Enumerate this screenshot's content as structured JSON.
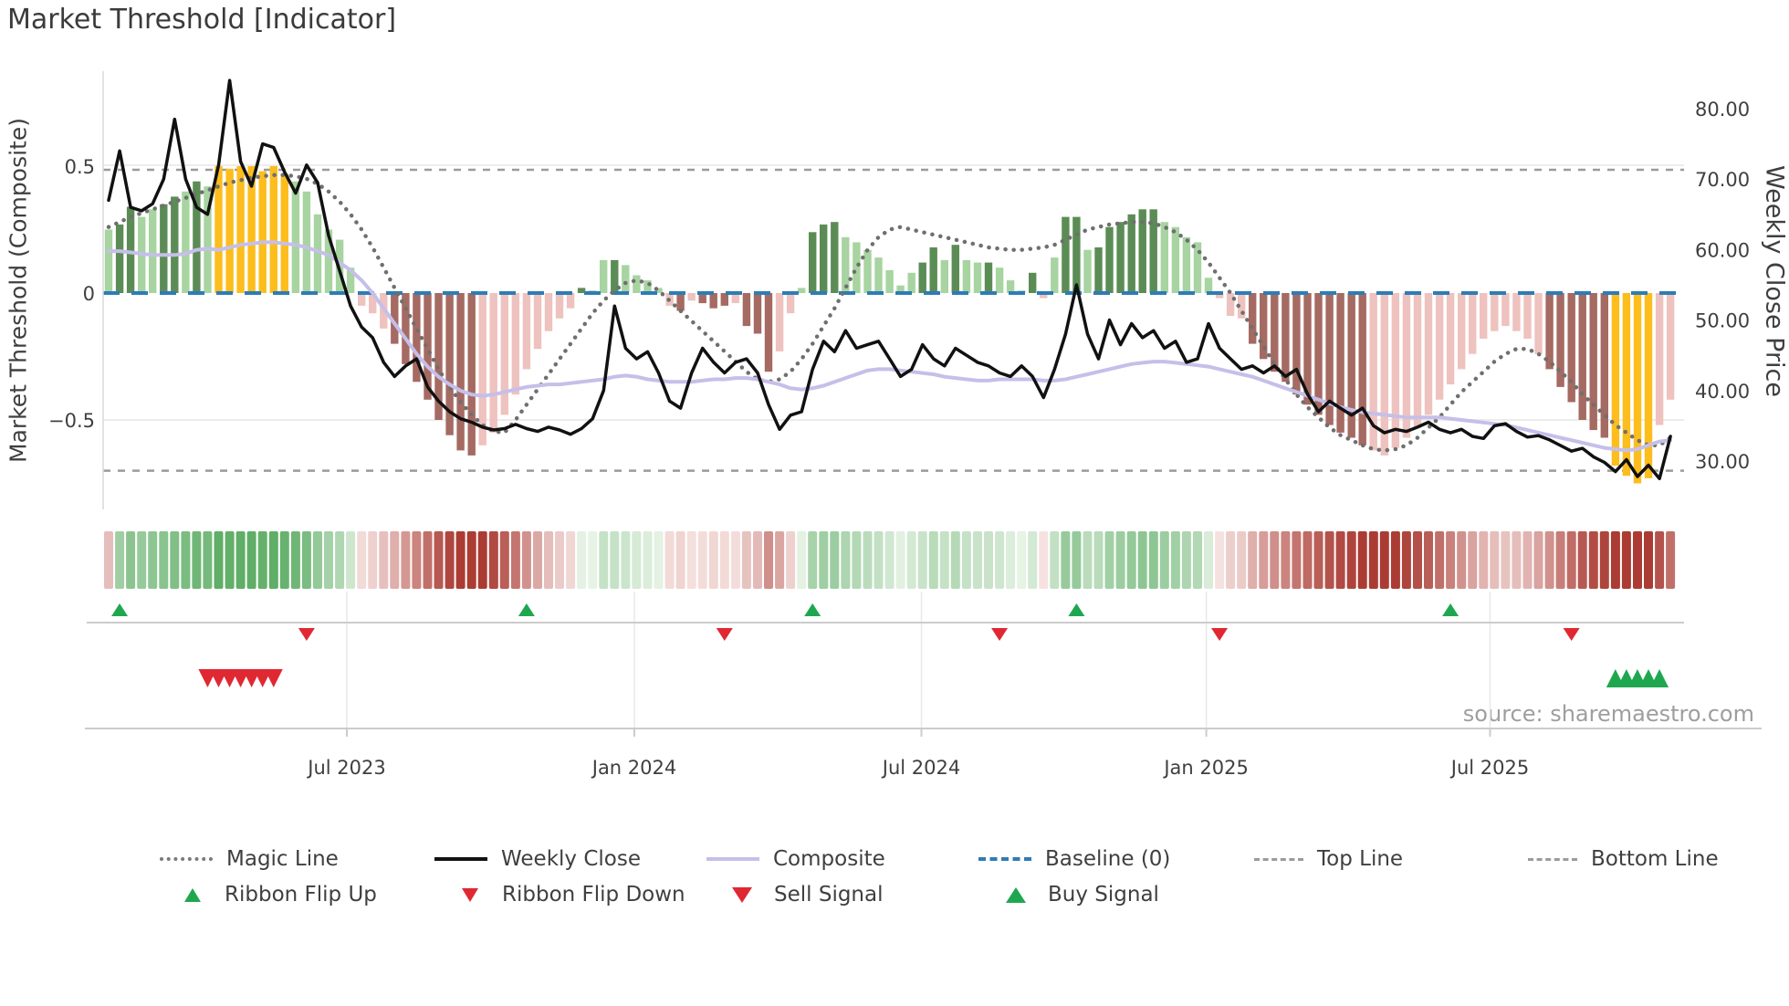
{
  "title": "Market Threshold [Indicator]",
  "source": "source: sharemaestro.com",
  "axes": {
    "left": {
      "label": "Market Threshold (Composite)",
      "ticks": [
        {
          "value": 0.5,
          "label": "0.5"
        },
        {
          "value": 0,
          "label": "0"
        },
        {
          "value": -0.5,
          "label": "−0.5"
        }
      ]
    },
    "right": {
      "label": "Weekly Close Price",
      "ticks": [
        {
          "value": 80,
          "label": "80.00"
        },
        {
          "value": 70,
          "label": "70.00"
        },
        {
          "value": 60,
          "label": "60.00"
        },
        {
          "value": 50,
          "label": "50.00"
        },
        {
          "value": 40,
          "label": "40.00"
        },
        {
          "value": 30,
          "label": "30.00"
        }
      ]
    },
    "x": {
      "ticks": [
        {
          "label": "Jul 2023",
          "week": 21.66
        },
        {
          "label": "Jan 2024",
          "week": 47.8
        },
        {
          "label": "Jul 2024",
          "week": 73.9
        },
        {
          "label": "Jan 2025",
          "week": 99.8
        },
        {
          "label": "Jul 2025",
          "week": 125.6
        }
      ]
    }
  },
  "colors": {
    "bar_light_green": "#a7d4a0",
    "bar_dark_green": "#5b8c55",
    "bar_yellow": "#fcbd1d",
    "bar_light_red": "#eec2be",
    "bar_dark_red": "#a56a62",
    "close_line": "#111111",
    "composite_line": "#c5bfe9",
    "magic_line": "#6f6f6f",
    "baseline": "#2e7cb5",
    "threshold_dash": "#9b9b9b",
    "grid": "#ececec",
    "spine": "#d9d9d9",
    "panel_line": "#cccccc",
    "vgrid": "#e8e8e8",
    "signal_green": "#1fa750",
    "signal_red": "#e02833",
    "ribbon_green_weak": "#e9f4e8",
    "ribbon_green_strong": "#44a04d",
    "ribbon_red_weak": "#f8e8e6",
    "ribbon_red_strong": "#aa3c34"
  },
  "chart_data": {
    "type": "combo",
    "x_unit": "week",
    "n_weeks": 143,
    "levels": {
      "baseline": 0,
      "top_line": 0.5,
      "bottom_line": -0.7
    },
    "left_axis_range": [
      -0.87,
      0.87
    ],
    "right_axis_range": [
      24,
      86
    ],
    "grid": "horizontal-light",
    "legend_position": "bottom",
    "series": [
      {
        "name": "Threshold Bars",
        "type": "bar",
        "axis": "left",
        "color_key_legend": {
          "lg": "light green",
          "dg": "dark green",
          "y": "yellow extreme zone",
          "lr": "light red",
          "dr": "dark red"
        },
        "values": [
          0.25,
          0.27,
          0.34,
          0.3,
          0.33,
          0.35,
          0.38,
          0.4,
          0.44,
          0.42,
          0.5,
          0.49,
          0.5,
          0.5,
          0.48,
          0.5,
          0.47,
          0.44,
          0.4,
          0.31,
          0.25,
          0.21,
          0.1,
          -0.05,
          -0.08,
          -0.14,
          -0.2,
          -0.28,
          -0.35,
          -0.42,
          -0.5,
          -0.56,
          -0.62,
          -0.64,
          -0.6,
          -0.55,
          -0.48,
          -0.4,
          -0.3,
          -0.22,
          -0.15,
          -0.1,
          -0.06,
          0.02,
          0.01,
          0.13,
          0.13,
          0.11,
          0.07,
          0.05,
          0.02,
          -0.05,
          -0.07,
          -0.03,
          -0.04,
          -0.06,
          -0.05,
          -0.04,
          -0.13,
          -0.16,
          -0.31,
          -0.23,
          -0.08,
          0.02,
          0.24,
          0.27,
          0.28,
          0.22,
          0.2,
          0.17,
          0.14,
          0.09,
          0.03,
          0.08,
          0.12,
          0.18,
          0.13,
          0.19,
          0.13,
          0.12,
          0.12,
          0.1,
          0.05,
          0.01,
          0.08,
          -0.02,
          0.14,
          0.3,
          0.3,
          0.17,
          0.18,
          0.26,
          0.28,
          0.31,
          0.33,
          0.33,
          0.28,
          0.26,
          0.22,
          0.2,
          0.06,
          -0.02,
          -0.09,
          -0.1,
          -0.2,
          -0.26,
          -0.31,
          -0.35,
          -0.4,
          -0.44,
          -0.48,
          -0.52,
          -0.55,
          -0.57,
          -0.6,
          -0.62,
          -0.64,
          -0.61,
          -0.57,
          -0.53,
          -0.48,
          -0.42,
          -0.36,
          -0.3,
          -0.24,
          -0.18,
          -0.15,
          -0.13,
          -0.15,
          -0.18,
          -0.24,
          -0.3,
          -0.37,
          -0.43,
          -0.5,
          -0.54,
          -0.57,
          -0.68,
          -0.72,
          -0.75,
          -0.73,
          -0.52,
          -0.42
        ],
        "colors": [
          "lg",
          "dg",
          "dg",
          "lg",
          "lg",
          "dg",
          "dg",
          "lg",
          "dg",
          "lg",
          "y",
          "y",
          "y",
          "y",
          "y",
          "y",
          "y",
          "lg",
          "lg",
          "lg",
          "lg",
          "lg",
          "lg",
          "lr",
          "lr",
          "lr",
          "dr",
          "dr",
          "dr",
          "dr",
          "dr",
          "dr",
          "dr",
          "dr",
          "lr",
          "lr",
          "lr",
          "lr",
          "lr",
          "lr",
          "lr",
          "lr",
          "lr",
          "dg",
          "lg",
          "lg",
          "dg",
          "lg",
          "lg",
          "lg",
          "lg",
          "lr",
          "dr",
          "lr",
          "dr",
          "dr",
          "dr",
          "lr",
          "dr",
          "dr",
          "dr",
          "lr",
          "lr",
          "lg",
          "dg",
          "dg",
          "dg",
          "lg",
          "lg",
          "lg",
          "lg",
          "lg",
          "lg",
          "lg",
          "dg",
          "dg",
          "lg",
          "dg",
          "lg",
          "lg",
          "dg",
          "lg",
          "lg",
          "lg",
          "dg",
          "lr",
          "lg",
          "dg",
          "dg",
          "lg",
          "dg",
          "dg",
          "dg",
          "dg",
          "dg",
          "dg",
          "lg",
          "lg",
          "lg",
          "lg",
          "lg",
          "lr",
          "lr",
          "lr",
          "dr",
          "dr",
          "dr",
          "dr",
          "dr",
          "dr",
          "dr",
          "dr",
          "dr",
          "dr",
          "dr",
          "lr",
          "lr",
          "lr",
          "lr",
          "lr",
          "lr",
          "lr",
          "lr",
          "lr",
          "lr",
          "lr",
          "lr",
          "lr",
          "lr",
          "lr",
          "lr",
          "dr",
          "dr",
          "dr",
          "dr",
          "dr",
          "dr",
          "y",
          "y",
          "y",
          "y",
          "lr",
          "lr"
        ]
      },
      {
        "name": "Weekly Close",
        "type": "line",
        "axis": "right",
        "values": [
          67,
          74,
          66,
          65.5,
          66.5,
          70,
          78.5,
          70,
          66,
          65,
          72,
          84,
          72.5,
          69,
          75,
          74.5,
          71,
          68,
          72,
          69.5,
          62,
          57,
          52,
          49,
          47.5,
          44,
          42,
          43.5,
          44.5,
          40.5,
          38.5,
          37,
          36,
          35.5,
          34.8,
          34.4,
          34.6,
          35.2,
          34.6,
          34.2,
          34.8,
          34.4,
          33.8,
          34.6,
          36,
          40,
          52,
          46,
          44.5,
          45.5,
          42.5,
          38.5,
          37.5,
          42.5,
          46,
          44,
          42.5,
          44,
          44.5,
          42.5,
          38,
          34.5,
          36.5,
          37,
          43,
          47,
          45.5,
          48.5,
          46,
          46.5,
          47,
          44.5,
          42,
          43,
          46.5,
          44.5,
          43.5,
          46,
          45,
          44,
          43.5,
          42.5,
          42,
          43.5,
          42,
          39,
          43,
          48,
          55,
          48,
          44.5,
          50,
          46.5,
          49.5,
          47.5,
          48.5,
          46,
          47,
          44,
          44.5,
          49.5,
          46,
          44.5,
          43,
          43.5,
          42.5,
          43.5,
          42,
          43,
          39.5,
          37,
          38.5,
          37.5,
          36.5,
          37.5,
          35,
          34,
          34.5,
          34.2,
          34.8,
          35.5,
          34.5,
          34,
          34.5,
          33.5,
          33.2,
          35,
          35.3,
          34.2,
          33.4,
          33.6,
          33,
          32.2,
          31.4,
          31.8,
          30.6,
          29.8,
          28.5,
          30.2,
          27.8,
          29.4,
          27.5,
          33.5
        ]
      },
      {
        "name": "Composite",
        "type": "line",
        "axis": "left",
        "values": [
          0.165,
          0.165,
          0.16,
          0.155,
          0.15,
          0.15,
          0.15,
          0.155,
          0.17,
          0.175,
          0.17,
          0.18,
          0.19,
          0.195,
          0.2,
          0.2,
          0.195,
          0.19,
          0.18,
          0.165,
          0.15,
          0.12,
          0.09,
          0.05,
          0.0,
          -0.06,
          -0.12,
          -0.18,
          -0.24,
          -0.29,
          -0.33,
          -0.36,
          -0.385,
          -0.4,
          -0.405,
          -0.4,
          -0.39,
          -0.38,
          -0.37,
          -0.365,
          -0.36,
          -0.36,
          -0.355,
          -0.35,
          -0.345,
          -0.34,
          -0.33,
          -0.325,
          -0.33,
          -0.34,
          -0.345,
          -0.35,
          -0.35,
          -0.35,
          -0.345,
          -0.34,
          -0.34,
          -0.335,
          -0.335,
          -0.34,
          -0.35,
          -0.36,
          -0.375,
          -0.38,
          -0.375,
          -0.365,
          -0.35,
          -0.335,
          -0.32,
          -0.305,
          -0.3,
          -0.3,
          -0.305,
          -0.31,
          -0.315,
          -0.32,
          -0.33,
          -0.335,
          -0.34,
          -0.345,
          -0.345,
          -0.34,
          -0.34,
          -0.34,
          -0.34,
          -0.345,
          -0.345,
          -0.34,
          -0.33,
          -0.32,
          -0.31,
          -0.3,
          -0.29,
          -0.28,
          -0.275,
          -0.27,
          -0.27,
          -0.275,
          -0.28,
          -0.285,
          -0.29,
          -0.3,
          -0.31,
          -0.32,
          -0.33,
          -0.345,
          -0.36,
          -0.375,
          -0.39,
          -0.405,
          -0.42,
          -0.435,
          -0.45,
          -0.46,
          -0.47,
          -0.475,
          -0.48,
          -0.485,
          -0.49,
          -0.49,
          -0.49,
          -0.49,
          -0.495,
          -0.5,
          -0.505,
          -0.51,
          -0.515,
          -0.52,
          -0.53,
          -0.54,
          -0.55,
          -0.56,
          -0.57,
          -0.58,
          -0.59,
          -0.6,
          -0.61,
          -0.615,
          -0.62,
          -0.615,
          -0.6,
          -0.585,
          -0.58
        ]
      },
      {
        "name": "Magic Line",
        "type": "line",
        "style": "dotted",
        "axis": "left",
        "values": [
          0.26,
          0.28,
          0.3,
          0.315,
          0.33,
          0.345,
          0.36,
          0.375,
          0.39,
          0.405,
          0.42,
          0.435,
          0.445,
          0.455,
          0.46,
          0.465,
          0.465,
          0.46,
          0.45,
          0.43,
          0.4,
          0.36,
          0.31,
          0.25,
          0.18,
          0.1,
          0.02,
          -0.06,
          -0.14,
          -0.22,
          -0.3,
          -0.37,
          -0.43,
          -0.48,
          -0.52,
          -0.545,
          -0.55,
          -0.5,
          -0.44,
          -0.38,
          -0.32,
          -0.26,
          -0.2,
          -0.14,
          -0.08,
          -0.03,
          0.01,
          0.04,
          0.05,
          0.04,
          0.01,
          -0.03,
          -0.07,
          -0.11,
          -0.15,
          -0.19,
          -0.23,
          -0.27,
          -0.31,
          -0.34,
          -0.35,
          -0.34,
          -0.31,
          -0.26,
          -0.2,
          -0.13,
          -0.06,
          0.02,
          0.1,
          0.17,
          0.22,
          0.25,
          0.26,
          0.25,
          0.24,
          0.23,
          0.22,
          0.21,
          0.2,
          0.19,
          0.18,
          0.175,
          0.17,
          0.17,
          0.175,
          0.18,
          0.19,
          0.21,
          0.23,
          0.25,
          0.26,
          0.27,
          0.275,
          0.28,
          0.28,
          0.275,
          0.26,
          0.24,
          0.21,
          0.17,
          0.12,
          0.06,
          0.0,
          -0.07,
          -0.14,
          -0.21,
          -0.28,
          -0.34,
          -0.4,
          -0.45,
          -0.49,
          -0.53,
          -0.56,
          -0.58,
          -0.6,
          -0.615,
          -0.62,
          -0.615,
          -0.6,
          -0.57,
          -0.53,
          -0.49,
          -0.44,
          -0.39,
          -0.35,
          -0.31,
          -0.27,
          -0.24,
          -0.22,
          -0.22,
          -0.24,
          -0.27,
          -0.31,
          -0.35,
          -0.4,
          -0.44,
          -0.48,
          -0.52,
          -0.55,
          -0.58,
          -0.6,
          -0.6,
          -0.57
        ]
      }
    ],
    "ribbon": {
      "derived_from": "Threshold Bars",
      "overrides": {
        "0": -0.15
      }
    },
    "signals": {
      "ribbon_flip_up_weeks": [
        1,
        38,
        64,
        88,
        122
      ],
      "ribbon_flip_down_weeks": [
        18,
        56,
        81,
        101,
        133
      ],
      "sell_signal_weeks": [
        9,
        10,
        11,
        12,
        13,
        14,
        15
      ],
      "buy_signal_weeks": [
        137,
        138,
        139,
        140,
        141
      ]
    }
  },
  "legend": {
    "row1": [
      {
        "name": "magic-line",
        "label": "Magic Line",
        "swatch": "dotted-gray"
      },
      {
        "name": "weekly-close",
        "label": "Weekly Close",
        "swatch": "solid-black"
      },
      {
        "name": "composite",
        "label": "Composite",
        "swatch": "solid-lavender"
      },
      {
        "name": "baseline",
        "label": "Baseline (0)",
        "swatch": "dashed-blue"
      },
      {
        "name": "top-line",
        "label": "Top Line",
        "swatch": "dashed-gray"
      },
      {
        "name": "bottom-line",
        "label": "Bottom Line",
        "swatch": "dashed-gray"
      }
    ],
    "row2": [
      {
        "name": "ribbon-flip-up",
        "label": "Ribbon Flip Up",
        "swatch": "tri-up-small"
      },
      {
        "name": "ribbon-flip-down",
        "label": "Ribbon Flip Down",
        "swatch": "tri-down-small"
      },
      {
        "name": "sell-signal",
        "label": "Sell Signal",
        "swatch": "tri-down-big"
      },
      {
        "name": "buy-signal",
        "label": "Buy Signal",
        "swatch": "tri-up-big"
      }
    ]
  }
}
